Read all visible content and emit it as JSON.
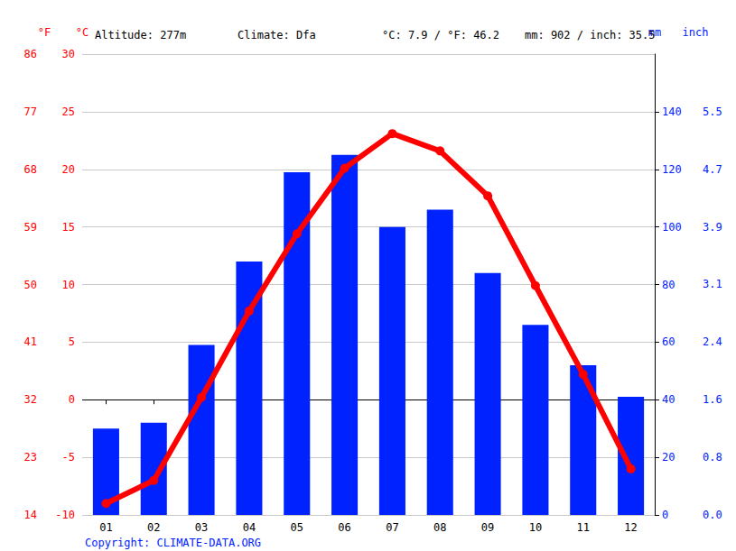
{
  "chart_data": {
    "type": "bar",
    "annotations": [
      "Altitude: 277m",
      "Climate: Dfa",
      "°C: 7.9 / °F: 46.2",
      "mm: 902 / inch: 35.5"
    ],
    "footer": "Copyright: CLIMATE-DATA.ORG",
    "categories": [
      "01",
      "02",
      "03",
      "04",
      "05",
      "06",
      "07",
      "08",
      "09",
      "10",
      "11",
      "12"
    ],
    "series": [
      {
        "type": "bar",
        "axis": "y2",
        "color": "#0022ff",
        "values": [
          30,
          32,
          59,
          88,
          119,
          125,
          100,
          106,
          84,
          66,
          52,
          41
        ]
      },
      {
        "type": "line",
        "color": "#ff0000",
        "marker": "circle",
        "line_style": "solid",
        "values": [
          -9.0,
          -7.0,
          0.2,
          7.7,
          14.4,
          20.1,
          23.1,
          21.6,
          17.7,
          9.9,
          2.2,
          -6.0
        ]
      }
    ],
    "y_label": "°C",
    "ylim": [
      -10,
      30
    ],
    "yticks": [
      -10,
      -5,
      0,
      5,
      10,
      15,
      20,
      25,
      30
    ],
    "y2_label": "mm",
    "y2lim": [
      0,
      160
    ],
    "y2ticks": [
      0,
      20,
      40,
      60,
      80,
      100,
      120,
      140
    ],
    "y3_label": "°F",
    "y3lim": [
      14,
      86
    ],
    "y3ticks": [
      14,
      23,
      32,
      41,
      50,
      59,
      68,
      77,
      86
    ],
    "y4_label": "inch",
    "y4lim": [
      0,
      6.299
    ],
    "y4ticks": [
      {
        "value": 0,
        "label": "0.0"
      },
      {
        "value": 0.787,
        "label": "0.8"
      },
      {
        "value": 1.575,
        "label": "1.6"
      },
      {
        "value": 2.362,
        "label": "2.4"
      },
      {
        "value": 3.1496,
        "label": "3.1"
      },
      {
        "value": 3.937,
        "label": "3.9"
      },
      {
        "value": 4.724,
        "label": "4.7"
      },
      {
        "value": 5.512,
        "label": "5.5"
      }
    ],
    "grid": true
  }
}
